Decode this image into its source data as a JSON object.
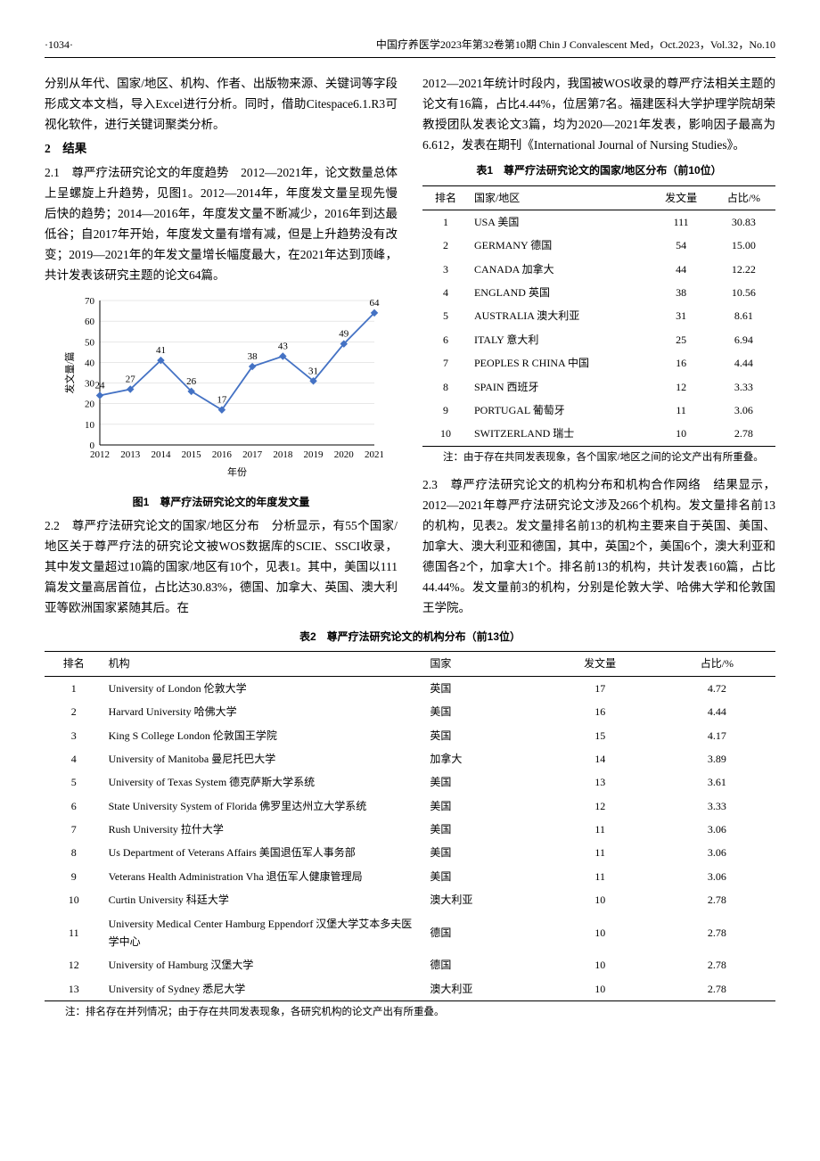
{
  "header": {
    "page_num_left": "·1034·",
    "journal": "中国疗养医学2023年第32卷第10期 Chin J Convalescent Med，Oct.2023，Vol.32，No.10"
  },
  "left_col": {
    "p1": "分别从年代、国家/地区、机构、作者、出版物来源、关键词等字段形成文本文档，导入Excel进行分析。同时，借助Citespace6.1.R3可视化软件，进行关键词聚类分析。",
    "sec2_title": "2　结果",
    "p2": "2.1　尊严疗法研究论文的年度趋势　2012—2021年，论文数量总体上呈螺旋上升趋势，见图1。2012—2014年，年度发文量呈现先慢后快的趋势；2014—2016年，年度发文量不断减少，2016年到达最低谷；自2017年开始，年度发文量有增有减，但是上升趋势没有改变；2019—2021年的年发文量增长幅度最大，在2021年达到顶峰，共计发表该研究主题的论文64篇。",
    "fig1_caption": "图1　尊严疗法研究论文的年度发文量",
    "p3": "2.2　尊严疗法研究论文的国家/地区分布　分析显示，有55个国家/地区关于尊严疗法的研究论文被WOS数据库的SCIE、SSCI收录，其中发文量超过10篇的国家/地区有10个，见表1。其中，美国以111篇发文量高居首位，占比达30.83%，德国、加拿大、英国、澳大利亚等欧洲国家紧随其后。在"
  },
  "right_col": {
    "p1": "2012—2021年统计时段内，我国被WOS收录的尊严疗法相关主题的论文有16篇，占比4.44%，位居第7名。福建医科大学护理学院胡荣教授团队发表论文3篇，均为2020—2021年发表，影响因子最高为6.612，发表在期刊《International Journal of Nursing Studies》。",
    "tbl1_caption": "表1　尊严疗法研究论文的国家/地区分布（前10位）",
    "tbl1_note": "注：由于存在共同发表现象，各个国家/地区之间的论文产出有所重叠。",
    "p2": "2.3　尊严疗法研究论文的机构分布和机构合作网络　结果显示，2012—2021年尊严疗法研究论文涉及266个机构。发文量排名前13的机构，见表2。发文量排名前13的机构主要来自于英国、美国、加拿大、澳大利亚和德国，其中，英国2个，美国6个，澳大利亚和德国各2个，加拿大1个。排名前13的机构，共计发表160篇，占比44.44%。发文量前3的机构，分别是伦敦大学、哈佛大学和伦敦国王学院。"
  },
  "fig1": {
    "type": "line",
    "ylabel": "发文量/篇",
    "xlabel": "年份",
    "x": [
      "2012",
      "2013",
      "2014",
      "2015",
      "2016",
      "2017",
      "2018",
      "2019",
      "2020",
      "2021"
    ],
    "y": [
      24,
      27,
      41,
      26,
      17,
      38,
      43,
      31,
      49,
      64
    ],
    "ylim": [
      0,
      70
    ],
    "ytick_step": 10,
    "line_color": "#4472c4",
    "marker_color": "#4472c4",
    "label_fontsize": 11,
    "background": "#ffffff",
    "grid_color": "#d0d0d0"
  },
  "tbl1": {
    "columns": [
      "排名",
      "国家/地区",
      "发文量",
      "占比/%"
    ],
    "rows": [
      [
        "1",
        "USA 美国",
        "111",
        "30.83"
      ],
      [
        "2",
        "GERMANY 德国",
        "54",
        "15.00"
      ],
      [
        "3",
        "CANADA 加拿大",
        "44",
        "12.22"
      ],
      [
        "4",
        "ENGLAND 英国",
        "38",
        "10.56"
      ],
      [
        "5",
        "AUSTRALIA 澳大利亚",
        "31",
        "8.61"
      ],
      [
        "6",
        "ITALY 意大利",
        "25",
        "6.94"
      ],
      [
        "7",
        "PEOPLES R CHINA 中国",
        "16",
        "4.44"
      ],
      [
        "8",
        "SPAIN 西班牙",
        "12",
        "3.33"
      ],
      [
        "9",
        "PORTUGAL 葡萄牙",
        "11",
        "3.06"
      ],
      [
        "10",
        "SWITZERLAND 瑞士",
        "10",
        "2.78"
      ]
    ]
  },
  "tbl2_caption": "表2　尊严疗法研究论文的机构分布（前13位）",
  "tbl2": {
    "columns": [
      "排名",
      "机构",
      "国家",
      "发文量",
      "占比/%"
    ],
    "rows": [
      [
        "1",
        "University of London 伦敦大学",
        "英国",
        "17",
        "4.72"
      ],
      [
        "2",
        "Harvard University 哈佛大学",
        "美国",
        "16",
        "4.44"
      ],
      [
        "3",
        "King S College London 伦敦国王学院",
        "英国",
        "15",
        "4.17"
      ],
      [
        "4",
        "University of Manitoba 曼尼托巴大学",
        "加拿大",
        "14",
        "3.89"
      ],
      [
        "5",
        "University of Texas System 德克萨斯大学系统",
        "美国",
        "13",
        "3.61"
      ],
      [
        "6",
        "State University System of Florida 佛罗里达州立大学系统",
        "美国",
        "12",
        "3.33"
      ],
      [
        "7",
        "Rush University 拉什大学",
        "美国",
        "11",
        "3.06"
      ],
      [
        "8",
        "Us Department of Veterans Affairs 美国退伍军人事务部",
        "美国",
        "11",
        "3.06"
      ],
      [
        "9",
        "Veterans Health Administration Vha 退伍军人健康管理局",
        "美国",
        "11",
        "3.06"
      ],
      [
        "10",
        "Curtin University 科廷大学",
        "澳大利亚",
        "10",
        "2.78"
      ],
      [
        "11",
        "University Medical Center Hamburg Eppendorf 汉堡大学艾本多夫医学中心",
        "德国",
        "10",
        "2.78"
      ],
      [
        "12",
        "University of Hamburg 汉堡大学",
        "德国",
        "10",
        "2.78"
      ],
      [
        "13",
        "University of Sydney 悉尼大学",
        "澳大利亚",
        "10",
        "2.78"
      ]
    ]
  },
  "tbl2_note": "注：排名存在并列情况；由于存在共同发表现象，各研究机构的论文产出有所重叠。"
}
